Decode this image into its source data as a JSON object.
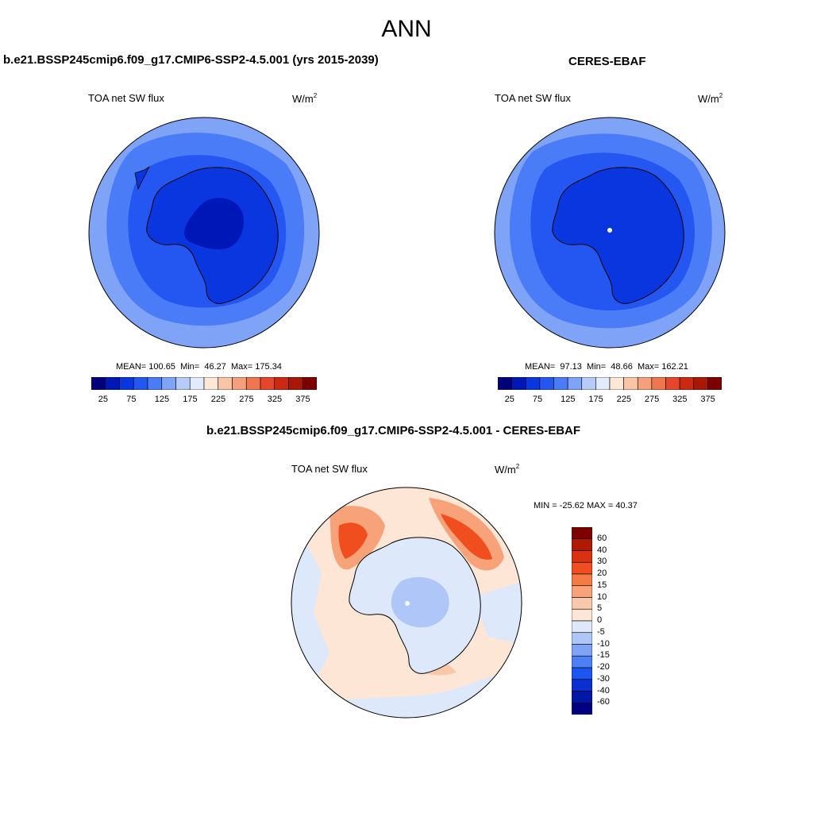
{
  "figure": {
    "title": "ANN"
  },
  "chart_data": [
    {
      "type": "heatmap",
      "projection": "south-polar-stereographic",
      "title": "b.e21.BSSP245cmip6.f09_g17.CMIP6-SSP2-4.5.001 (yrs 2015-2039)",
      "variable_label": "TOA net SW flux",
      "units": "W/m",
      "units_exp": "2",
      "stats": {
        "mean_label": "MEAN=",
        "mean": "100.65",
        "min_label": "Min=",
        "min": "46.27",
        "max_label": "Max=",
        "max": "175.34"
      },
      "colorbar": {
        "levels": [
          0,
          25,
          50,
          75,
          100,
          125,
          150,
          175,
          200,
          225,
          250,
          275,
          300,
          325,
          350,
          375,
          400
        ],
        "tick_labels": [
          "25",
          "75",
          "125",
          "175",
          "225",
          "275",
          "325",
          "375"
        ],
        "colors": [
          "#00007a",
          "#0017b8",
          "#0a36e0",
          "#2457f2",
          "#4b7cf7",
          "#7fa3f7",
          "#b6cbf7",
          "#e1ebfb",
          "#fde7d7",
          "#f8c6a7",
          "#f4a07c",
          "#f0764f",
          "#e8462a",
          "#cc2a10",
          "#a91806",
          "#7c0000"
        ]
      },
      "zones_description_values": {
        "ocean_far": 125,
        "ocean_mid": 112,
        "ocean_near": 100,
        "continent": 75,
        "plateau": 60
      }
    },
    {
      "type": "heatmap",
      "projection": "south-polar-stereographic",
      "title": "CERES-EBAF",
      "variable_label": "TOA net SW flux",
      "units": "W/m",
      "units_exp": "2",
      "stats": {
        "mean_label": "MEAN=",
        "mean": "97.13",
        "min_label": "Min=",
        "min": "48.66",
        "max_label": "Max=",
        "max": "162.21"
      },
      "colorbar": {
        "levels": [
          0,
          25,
          50,
          75,
          100,
          125,
          150,
          175,
          200,
          225,
          250,
          275,
          300,
          325,
          350,
          375,
          400
        ],
        "tick_labels": [
          "25",
          "75",
          "125",
          "175",
          "225",
          "275",
          "325",
          "375"
        ],
        "colors": [
          "#00007a",
          "#0017b8",
          "#0a36e0",
          "#2457f2",
          "#4b7cf7",
          "#7fa3f7",
          "#b6cbf7",
          "#e1ebfb",
          "#fde7d7",
          "#f8c6a7",
          "#f4a07c",
          "#f0764f",
          "#e8462a",
          "#cc2a10",
          "#a91806",
          "#7c0000"
        ]
      }
    },
    {
      "type": "heatmap",
      "projection": "south-polar-stereographic",
      "title": "b.e21.BSSP245cmip6.f09_g17.CMIP6-SSP2-4.5.001 - CERES-EBAF",
      "variable_label": "TOA net SW flux",
      "units": "W/m",
      "units_exp": "2",
      "stats_text": "MIN = -25.62 MAX =  40.37",
      "colorbar": {
        "orientation": "vertical",
        "tick_labels": [
          "60",
          "40",
          "30",
          "20",
          "15",
          "10",
          "5",
          "0",
          "-5",
          "-10",
          "-15",
          "-20",
          "-30",
          "-40",
          "-60"
        ],
        "colors": [
          "#7c0000",
          "#b01a05",
          "#d83212",
          "#f04e1e",
          "#f57a44",
          "#f7a278",
          "#f9c8a8",
          "#fde6d6",
          "#dde8fb",
          "#aec7f8",
          "#7fa4f6",
          "#4d7ff5",
          "#1d55f0",
          "#0b2fcf",
          "#0018a8",
          "#000080"
        ]
      }
    }
  ]
}
